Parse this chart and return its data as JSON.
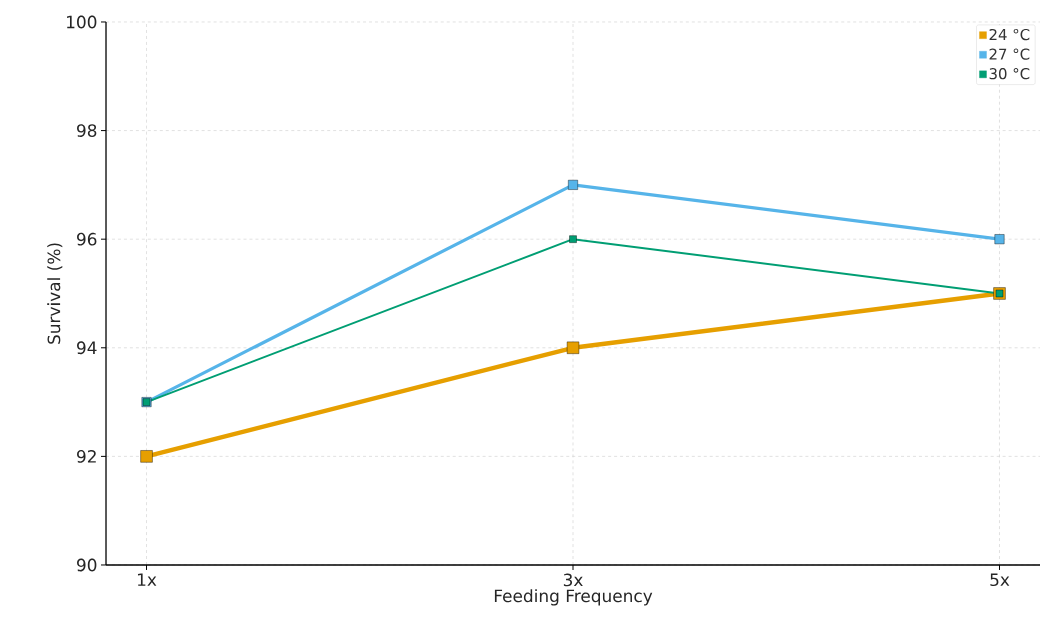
{
  "chart_data": {
    "type": "line",
    "xlabel": "Feeding Frequency",
    "ylabel": "Survival (%)",
    "categories": [
      "1x",
      "3x",
      "5x"
    ],
    "series": [
      {
        "name": "24 °C",
        "color": "#e69f00",
        "values": [
          92,
          94,
          95
        ]
      },
      {
        "name": "27 °C",
        "color": "#56b4e9",
        "values": [
          93,
          97,
          96
        ]
      },
      {
        "name": "30 °C",
        "color": "#009e73",
        "values": [
          93,
          96,
          95
        ]
      }
    ],
    "ylim": [
      90,
      100
    ],
    "yticks": [
      90,
      92,
      94,
      96,
      98,
      100
    ],
    "grid": true,
    "legend": "top right",
    "marker": "square",
    "line_style": "solid"
  }
}
